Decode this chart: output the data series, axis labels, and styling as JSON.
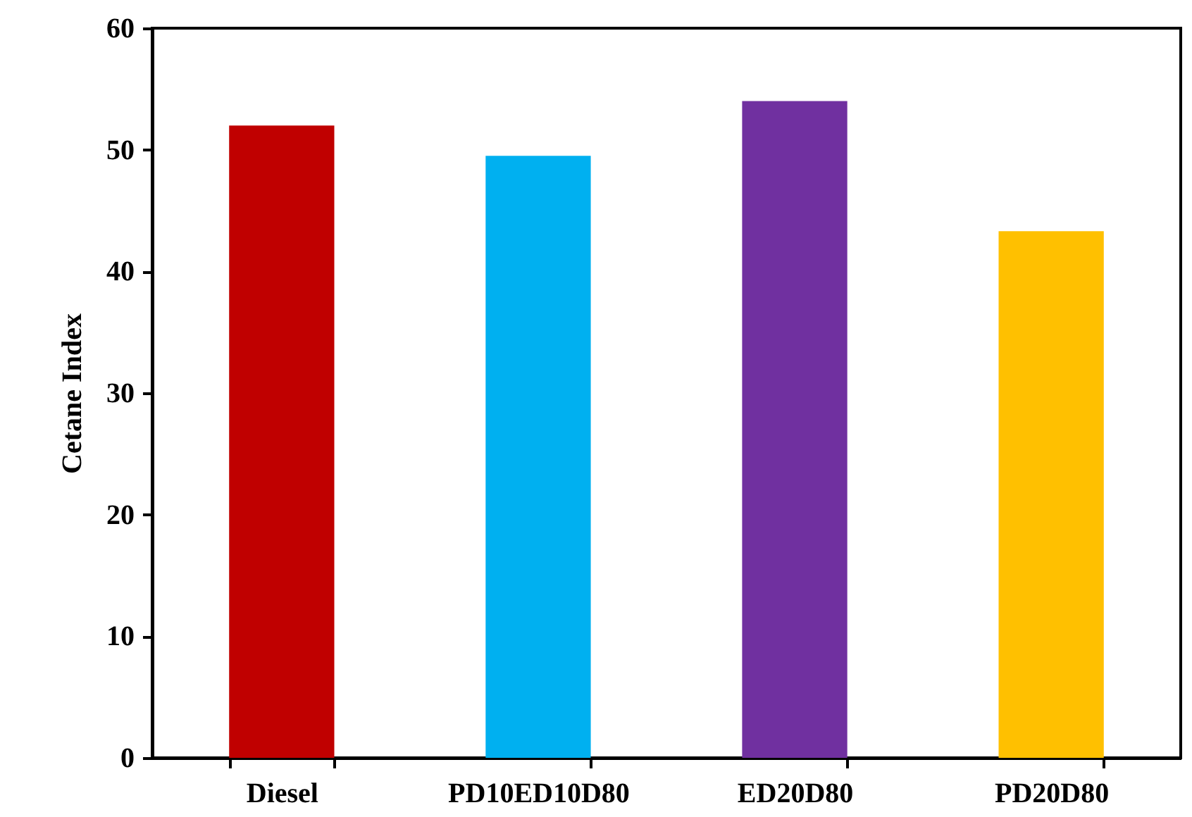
{
  "chart_data": {
    "type": "bar",
    "categories": [
      "Diesel",
      "PD10ED10D80",
      "ED20D80",
      "PD20D80"
    ],
    "values": [
      52.0,
      49.5,
      54.0,
      43.3
    ],
    "colors": [
      "#c00000",
      "#00b0f0",
      "#7030a0",
      "#ffc000"
    ],
    "ylabel": "Cetane Index",
    "ylim": [
      0,
      60
    ],
    "yticks": [
      0,
      10,
      20,
      30,
      40,
      50,
      60
    ],
    "grid": false
  }
}
